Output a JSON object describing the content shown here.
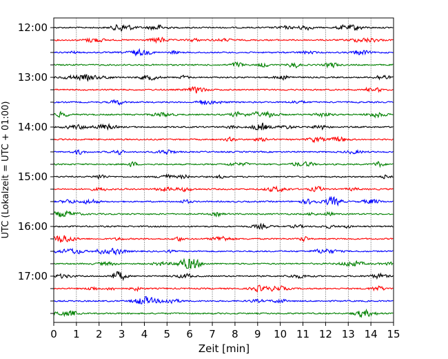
{
  "chart_data": {
    "type": "line",
    "title": "",
    "xlabel": "Zeit  [min]",
    "ylabel": "UTC (Lokalzeit = UTC + 01:00)",
    "xlim": [
      0,
      15
    ],
    "x_ticks": [
      0,
      1,
      2,
      3,
      4,
      5,
      6,
      7,
      8,
      9,
      10,
      11,
      12,
      13,
      14,
      15
    ],
    "x_tick_labels": [
      "0",
      "1",
      "2",
      "3",
      "4",
      "5",
      "6",
      "7",
      "8",
      "9",
      "10",
      "11",
      "12",
      "13",
      "14",
      "15"
    ],
    "y_tick_labels": [
      "12:00",
      "13:00",
      "14:00",
      "15:00",
      "16:00",
      "17:00"
    ],
    "vertical_grid": true,
    "trace_colors": [
      "#000000",
      "#ff0000",
      "#0000ff",
      "#008000"
    ],
    "traces": [
      {
        "start": "12:00"
      },
      {
        "start": "12:15"
      },
      {
        "start": "12:30"
      },
      {
        "start": "12:45"
      },
      {
        "start": "13:00"
      },
      {
        "start": "13:15"
      },
      {
        "start": "13:30"
      },
      {
        "start": "13:45"
      },
      {
        "start": "14:00"
      },
      {
        "start": "14:15"
      },
      {
        "start": "14:30"
      },
      {
        "start": "14:45"
      },
      {
        "start": "15:00"
      },
      {
        "start": "15:15"
      },
      {
        "start": "15:30"
      },
      {
        "start": "15:45"
      },
      {
        "start": "16:00"
      },
      {
        "start": "16:15"
      },
      {
        "start": "16:30"
      },
      {
        "start": "16:45"
      },
      {
        "start": "17:00"
      },
      {
        "start": "17:15"
      },
      {
        "start": "17:30"
      },
      {
        "start": "17:45"
      }
    ]
  }
}
